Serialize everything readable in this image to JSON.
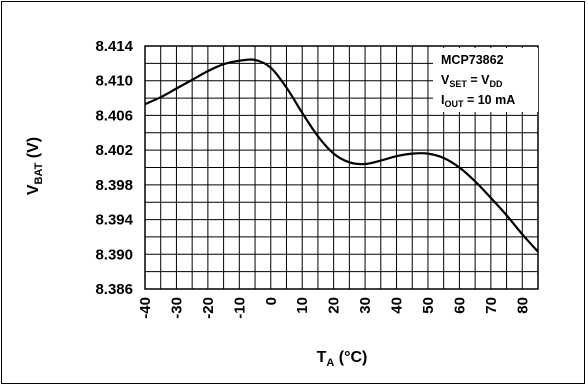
{
  "chart_data": {
    "type": "line",
    "x": [
      -40,
      -35,
      -30,
      -25,
      -20,
      -15,
      -10,
      -5,
      0,
      5,
      10,
      15,
      20,
      25,
      30,
      35,
      40,
      45,
      50,
      55,
      60,
      65,
      70,
      75,
      80,
      85
    ],
    "series": [
      {
        "values": [
          8.4073,
          8.4081,
          8.4091,
          8.4101,
          8.4111,
          8.4119,
          8.4123,
          8.4124,
          8.4115,
          8.4092,
          8.4063,
          8.4036,
          8.4016,
          8.4006,
          8.4004,
          8.4008,
          8.4013,
          8.4016,
          8.4016,
          8.4011,
          8.4,
          8.3984,
          8.3965,
          8.3945,
          8.3923,
          8.3903
        ]
      }
    ],
    "xlabel": "T_A (°C)",
    "ylabel": "V_BAT (V)",
    "xlim": [
      -40,
      85
    ],
    "ylim": [
      8.386,
      8.414
    ],
    "xticks": [
      -40,
      -30,
      -20,
      -10,
      0,
      10,
      20,
      30,
      40,
      50,
      60,
      70,
      80
    ],
    "xtick_labels": [
      "-40",
      "-30",
      "-20",
      "-10",
      "0",
      "10",
      "20",
      "30",
      "40",
      "50",
      "60",
      "70",
      "80"
    ],
    "yticks": [
      8.386,
      8.39,
      8.394,
      8.398,
      8.402,
      8.406,
      8.41,
      8.414
    ],
    "ytick_labels": [
      "8.386",
      "8.390",
      "8.394",
      "8.398",
      "8.402",
      "8.406",
      "8.410",
      "8.414"
    ],
    "grid": true,
    "line_color": "#000000",
    "annotation": {
      "line1": "MCP73862",
      "line2_main": "V",
      "line2_sub": "SET",
      "line2_mid": " = V",
      "line2_sub2": "DD",
      "line3_main": "I",
      "line3_sub": "OUT",
      "line3_rest": " = 10 mA"
    },
    "axis_labels": {
      "y_main": "V",
      "y_sub": "BAT",
      "y_rest": " (V)",
      "x_main": "T",
      "x_sub": "A",
      "x_rest": " (°C)"
    }
  }
}
